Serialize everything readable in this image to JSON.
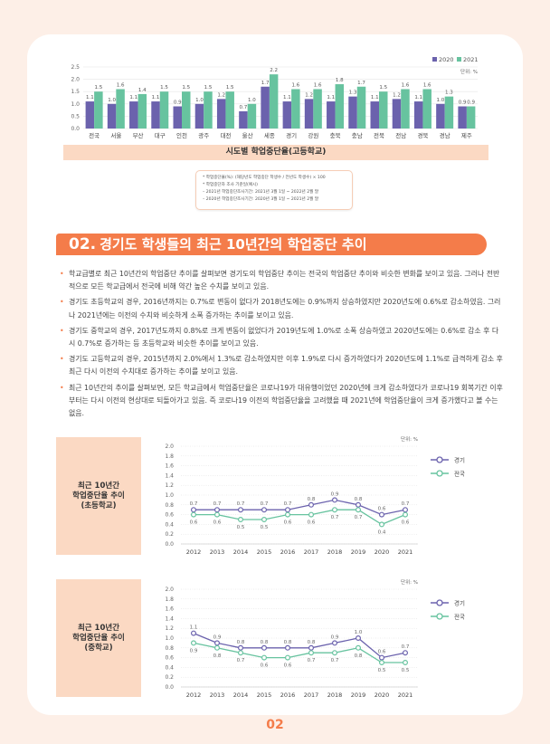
{
  "bar_chart": {
    "type": "bar",
    "title": "시도별 학업중단율(고등학교)",
    "unit": "단위: %",
    "categories": [
      "전국",
      "서울",
      "부산",
      "대구",
      "인천",
      "광주",
      "대전",
      "울산",
      "세종",
      "경기",
      "강원",
      "충북",
      "충남",
      "전북",
      "전남",
      "경북",
      "경남",
      "제주"
    ],
    "series": [
      {
        "name": "2020",
        "color": "#6b62ad",
        "values": [
          1.1,
          1.0,
          1.1,
          1.1,
          0.9,
          1.0,
          1.2,
          0.7,
          1.7,
          1.1,
          1.2,
          1.1,
          1.3,
          1.1,
          1.2,
          1.1,
          1.0,
          0.9
        ]
      },
      {
        "name": "2021",
        "color": "#67c39f",
        "values": [
          1.5,
          1.6,
          1.4,
          1.5,
          1.5,
          1.5,
          1.5,
          1.0,
          2.2,
          1.6,
          1.6,
          1.8,
          1.7,
          1.5,
          1.6,
          1.6,
          1.3,
          0.9
        ]
      }
    ],
    "yticks": [
      "0.0",
      "0.5",
      "1.0",
      "1.5",
      "2.0",
      "2.5"
    ],
    "ylim": [
      0,
      2.5
    ]
  },
  "notes": [
    "* 학업중단율(%): (해당년도 학업중단 학생수 / 전년도 학생수) × 100",
    "* 학업중단자 조사 기준일(예시)",
    "– 2021년 학업중단조사기간: 2021년 3월 1일 ~ 2022년 2월 말",
    "– 2020년 학업중단조사기간: 2020년 3월 1일 ~ 2021년 2월 말"
  ],
  "section": {
    "number": "02.",
    "title": "경기도 학생들의 최근 10년간의 학업중단 추이"
  },
  "bullets": [
    "학교급별로 최근 10년간의 학업중단 추이를 살펴보면 경기도의 학업중단 추이는 전국의 학업중단 추이와 비슷한 변화를 보이고 있음. 그러나 전반적으로 모든 학교급에서 전국에 비해 약간 높은 수치를 보이고 있음.",
    "경기도 초등학교의 경우, 2016년까지는 0.7%로 변동이 없다가 2018년도에는 0.9%까지 상승하였지만 2020년도에 0.6%로  감소하였음. 그러나 2021년에는 이전의 수치와 비슷하게 소폭 증가하는 추이를 보이고 있음.",
    "경기도 중학교의 경우, 2017년도까지 0.8%로 크게 변동이 없었다가 2019년도에 1.0%로 소폭 상승하였고 2020년도에는 0.6%로 감소 후 다시 0.7%로 증가하는 등 초등학교와 비슷한 추이를 보이고 있음.",
    "경기도 고등학교의 경우, 2015년까지 2.0%에서 1.3%로 감소하였지만 이후 1.9%로 다시 증가하였다가 2020년도에 1.1%로 급격하게 감소 후 최근 다시 이전의 수치대로 증가하는 추이를 보이고 있음.",
    "최근 10년간의 추이를 살펴보면, 모든 학교급에서 학업중단율은 코로나19가 대유행이었던 2020년에 크게 감소하였다가 코로나19 회복기간 이후부터는 다시 이전의 현상대로 되돌아가고 있음. 즉 코로나19 이전의 학업중단율을 고려했을 때 2021년에 학업중단율이 크게 증가했다고 볼 수는 없음."
  ],
  "chart_data": [
    {
      "type": "line",
      "title": "최근 10년간\n학업중단율 추이\n(초등학교)",
      "unit": "단위: %",
      "x": [
        "2012",
        "2013",
        "2014",
        "2015",
        "2016",
        "2017",
        "2018",
        "2019",
        "2020",
        "2021"
      ],
      "series": [
        {
          "name": "경기",
          "color": "#6b62ad",
          "values": [
            0.7,
            0.7,
            0.7,
            0.7,
            0.7,
            0.8,
            0.9,
            0.8,
            0.6,
            0.7
          ]
        },
        {
          "name": "전국",
          "color": "#67c39f",
          "values": [
            0.6,
            0.6,
            0.5,
            0.5,
            0.6,
            0.6,
            0.7,
            0.7,
            0.4,
            0.6
          ]
        }
      ],
      "yticks": [
        "0.0",
        "0.2",
        "0.4",
        "0.6",
        "0.8",
        "1.0",
        "1.2",
        "1.4",
        "1.6",
        "1.8",
        "2.0"
      ],
      "ylim": [
        0,
        2.0
      ]
    },
    {
      "type": "line",
      "title": "최근 10년간\n학업중단율 추이\n(중학교)",
      "unit": "단위: %",
      "x": [
        "2012",
        "2013",
        "2014",
        "2015",
        "2016",
        "2017",
        "2018",
        "2019",
        "2020",
        "2021"
      ],
      "series": [
        {
          "name": "경기",
          "color": "#6b62ad",
          "values": [
            1.1,
            0.9,
            0.8,
            0.8,
            0.8,
            0.8,
            0.9,
            1.0,
            0.6,
            0.7
          ]
        },
        {
          "name": "전국",
          "color": "#67c39f",
          "values": [
            0.9,
            0.8,
            0.7,
            0.6,
            0.6,
            0.7,
            0.7,
            0.8,
            0.5,
            0.5
          ]
        }
      ],
      "yticks": [
        "0.0",
        "0.2",
        "0.4",
        "0.6",
        "0.8",
        "1.0",
        "1.2",
        "1.4",
        "1.6",
        "1.8",
        "2.0"
      ],
      "ylim": [
        0,
        2.0
      ]
    }
  ],
  "page_number": "02"
}
